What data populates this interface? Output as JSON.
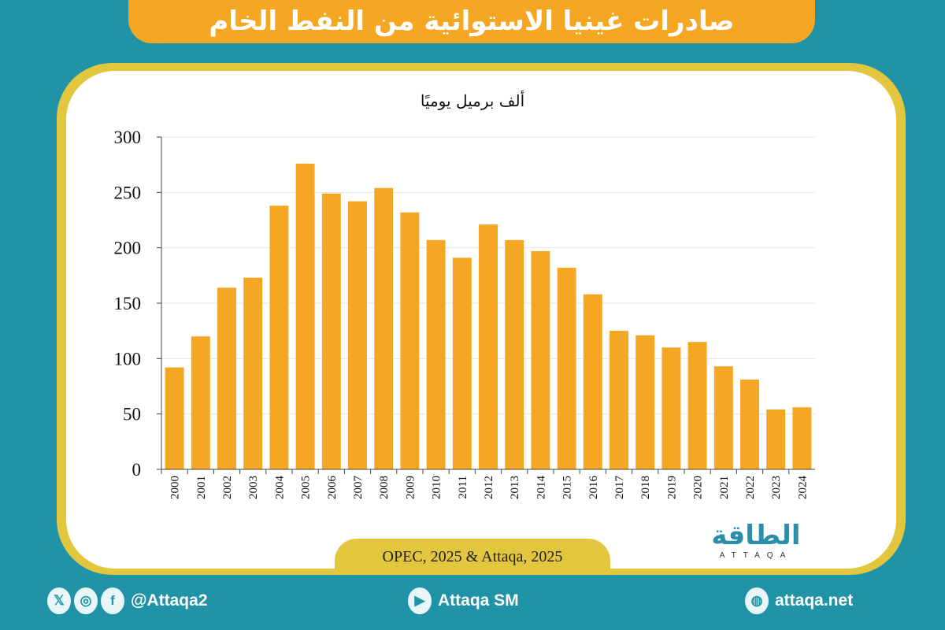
{
  "title": "صادرات غينيا الاستوائية من النفط الخام",
  "source": "OPEC, 2025 & Attaqa, 2025",
  "logo": {
    "arabic": "الطاقة",
    "english": "ATTAQA"
  },
  "footer": {
    "social_handle": "@Attaqa2",
    "youtube": "Attaqa SM",
    "website": "attaqa.net"
  },
  "colors": {
    "bar": "#f5a623",
    "background": "#2193a7",
    "frame": "#e2c63e"
  },
  "chart_data": {
    "type": "bar",
    "title": "صادرات غينيا الاستوائية من النفط الخام",
    "ylabel": "ألف برميل يوميًا",
    "xlabel": "",
    "ylim": [
      0,
      300
    ],
    "yticks": [
      0,
      50,
      100,
      150,
      200,
      250,
      300
    ],
    "grid": true,
    "categories": [
      "2000",
      "2001",
      "2002",
      "2003",
      "2004",
      "2005",
      "2006",
      "2007",
      "2008",
      "2009",
      "2010",
      "2011",
      "2012",
      "2013",
      "2014",
      "2015",
      "2016",
      "2017",
      "2018",
      "2019",
      "2020",
      "2021",
      "2022",
      "2023",
      "2024"
    ],
    "values": [
      92,
      120,
      164,
      173,
      238,
      276,
      249,
      242,
      254,
      232,
      207,
      191,
      221,
      207,
      197,
      182,
      158,
      125,
      121,
      110,
      115,
      93,
      81,
      54,
      56
    ]
  }
}
